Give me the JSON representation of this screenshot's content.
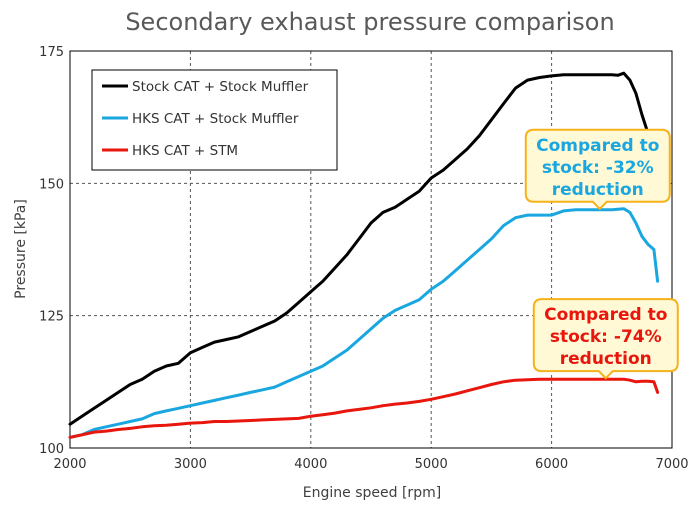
{
  "chart_data": {
    "type": "line",
    "title": "Secondary exhaust pressure comparison",
    "xlabel": "Engine speed [rpm]",
    "ylabel": "Pressure [kPa]",
    "xlim": [
      2000,
      7000
    ],
    "ylim": [
      100,
      175
    ],
    "xticks": [
      "2000",
      "3000",
      "4000",
      "5000",
      "6000",
      "7000"
    ],
    "yticks": [
      "100",
      "125",
      "150",
      "175"
    ],
    "grid": true,
    "legend_position": "top-left",
    "series": [
      {
        "name": "Stock CAT + Stock Muffler",
        "color": "#000000",
        "x": [
          2000,
          2100,
          2200,
          2300,
          2400,
          2500,
          2600,
          2700,
          2800,
          2900,
          3000,
          3100,
          3200,
          3300,
          3400,
          3500,
          3600,
          3700,
          3800,
          3900,
          4000,
          4100,
          4200,
          4300,
          4400,
          4500,
          4600,
          4700,
          4800,
          4900,
          5000,
          5100,
          5200,
          5300,
          5400,
          5500,
          5600,
          5700,
          5800,
          5900,
          6000,
          6100,
          6200,
          6300,
          6400,
          6500,
          6550,
          6600,
          6650,
          6700,
          6750,
          6800,
          6850,
          6880
        ],
        "y": [
          104.5,
          106,
          107.5,
          109,
          110.5,
          112,
          113,
          114.5,
          115.5,
          116,
          118,
          119,
          120,
          120.5,
          121,
          122,
          123,
          124,
          125.5,
          127.5,
          129.5,
          131.5,
          134,
          136.5,
          139.5,
          142.5,
          144.5,
          145.5,
          147,
          148.5,
          151,
          152.5,
          154.5,
          156.5,
          159,
          162,
          165,
          168,
          169.5,
          170,
          170.3,
          170.5,
          170.5,
          170.5,
          170.5,
          170.5,
          170.4,
          170.8,
          169.5,
          167,
          163,
          159.5,
          155,
          149.5
        ]
      },
      {
        "name": "HKS CAT + Stock Muffler",
        "color": "#1aa7e0",
        "x": [
          2000,
          2100,
          2200,
          2300,
          2400,
          2500,
          2600,
          2700,
          2800,
          2900,
          3000,
          3100,
          3200,
          3300,
          3400,
          3500,
          3600,
          3700,
          3800,
          3900,
          4000,
          4100,
          4200,
          4300,
          4400,
          4500,
          4600,
          4700,
          4800,
          4900,
          5000,
          5100,
          5200,
          5300,
          5400,
          5500,
          5600,
          5700,
          5800,
          5900,
          6000,
          6100,
          6200,
          6300,
          6400,
          6500,
          6600,
          6650,
          6700,
          6750,
          6800,
          6850,
          6880
        ],
        "y": [
          102,
          102.5,
          103.5,
          104,
          104.5,
          105,
          105.5,
          106.5,
          107,
          107.5,
          108,
          108.5,
          109,
          109.5,
          110,
          110.5,
          111,
          111.5,
          112.5,
          113.5,
          114.5,
          115.5,
          117,
          118.5,
          120.5,
          122.5,
          124.5,
          126,
          127,
          128,
          130,
          131.5,
          133.5,
          135.5,
          137.5,
          139.5,
          142,
          143.5,
          144,
          144,
          144,
          144.8,
          145,
          145,
          145,
          145,
          145.2,
          144.5,
          142.5,
          140,
          138.5,
          137.5,
          131.5
        ]
      },
      {
        "name": "HKS CAT + STM",
        "color": "#e8160c",
        "x": [
          2000,
          2100,
          2200,
          2300,
          2400,
          2500,
          2600,
          2700,
          2800,
          2900,
          3000,
          3100,
          3200,
          3300,
          3400,
          3500,
          3600,
          3700,
          3800,
          3900,
          4000,
          4100,
          4200,
          4300,
          4400,
          4500,
          4600,
          4700,
          4800,
          4900,
          5000,
          5100,
          5200,
          5300,
          5400,
          5500,
          5600,
          5700,
          5800,
          5900,
          6000,
          6100,
          6200,
          6300,
          6400,
          6500,
          6600,
          6650,
          6700,
          6750,
          6800,
          6850,
          6880
        ],
        "y": [
          102,
          102.5,
          103,
          103.2,
          103.5,
          103.7,
          104,
          104.2,
          104.3,
          104.5,
          104.7,
          104.8,
          105,
          105,
          105.1,
          105.2,
          105.3,
          105.4,
          105.5,
          105.6,
          106,
          106.3,
          106.6,
          107,
          107.3,
          107.6,
          108,
          108.3,
          108.5,
          108.8,
          109.2,
          109.7,
          110.2,
          110.8,
          111.4,
          112,
          112.5,
          112.8,
          112.9,
          113,
          113,
          113,
          113,
          113,
          113,
          113,
          113,
          112.8,
          112.5,
          112.6,
          112.6,
          112.5,
          110.5
        ]
      }
    ],
    "annotations": [
      {
        "lines": [
          "Compared to",
          "stock: -32%",
          "reduction"
        ],
        "color": "#1aa7e0",
        "target_x": 6400,
        "target_y": 145
      },
      {
        "lines": [
          "Compared to",
          "stock: -74%",
          "reduction"
        ],
        "color": "#e8160c",
        "target_x": 6450,
        "target_y": 113
      }
    ]
  },
  "colors": {
    "callout_border": "#f5b21a",
    "callout_fill": "#fff9d6",
    "grid": "#555555"
  }
}
